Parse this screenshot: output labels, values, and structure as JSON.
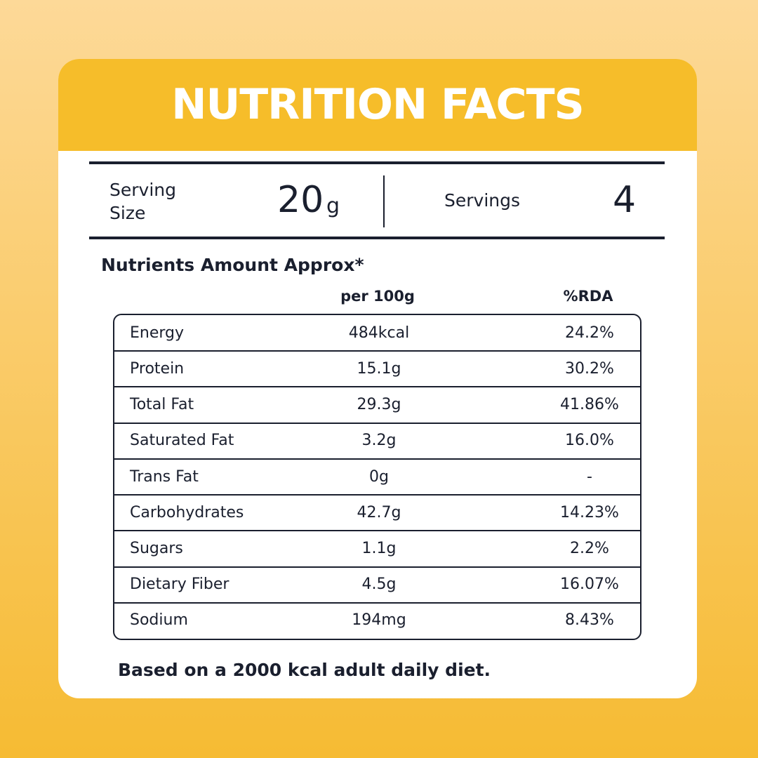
{
  "header": {
    "title": "NUTRITION FACTS"
  },
  "serving": {
    "label": "Serving Size",
    "amount": "20",
    "unit": "g",
    "servings_label": "Servings",
    "servings": "4"
  },
  "table": {
    "title": "Nutrients Amount Approx*",
    "columns": [
      "per 100g",
      "%RDA"
    ],
    "rows": [
      [
        "Energy",
        "484kcal",
        "24.2%"
      ],
      [
        "Protein",
        "15.1g",
        "30.2%"
      ],
      [
        "Total Fat",
        "29.3g",
        "41.86%"
      ],
      [
        "Saturated Fat",
        "3.2g",
        "16.0%"
      ],
      [
        "Trans Fat",
        "0g",
        "-"
      ],
      [
        "Carbohydrates",
        "42.7g",
        "14.23%"
      ],
      [
        "Sugars",
        "1.1g",
        "2.2%"
      ],
      [
        "Dietary Fiber",
        "4.5g",
        "16.07%"
      ],
      [
        "Sodium",
        "194mg",
        "8.43%"
      ]
    ]
  },
  "footer": {
    "note": "Based on a 2000 kcal adult daily diet."
  }
}
